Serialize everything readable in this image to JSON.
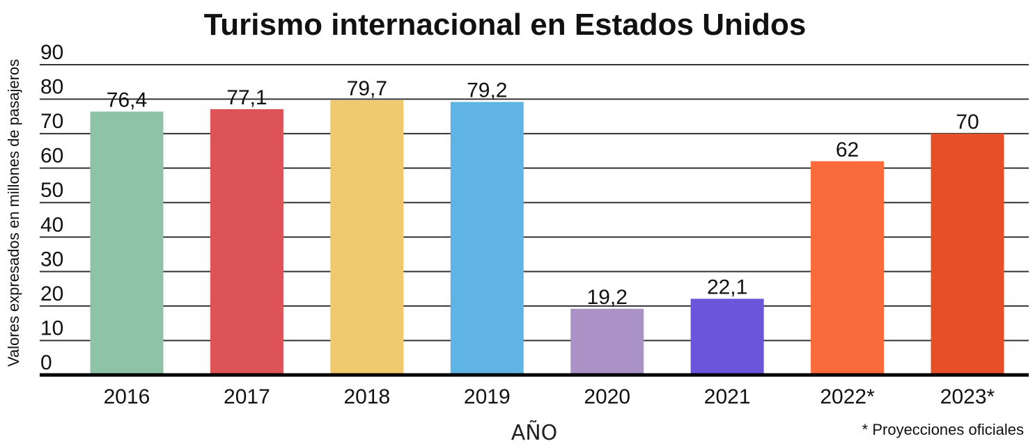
{
  "chart_data": {
    "type": "bar",
    "title": "Turismo internacional en Estados Unidos",
    "xlabel": "AÑO",
    "ylabel": "Valores expresados en millones de pasajeros",
    "categories": [
      "2016",
      "2017",
      "2018",
      "2019",
      "2020",
      "2021",
      "2022*",
      "2023*"
    ],
    "values": [
      76.4,
      77.1,
      79.7,
      79.2,
      19.2,
      22.1,
      62,
      70
    ],
    "value_labels": [
      "76,4",
      "77,1",
      "79,7",
      "79,2",
      "19,2",
      "22,1",
      "62",
      "70"
    ],
    "colors": [
      "#8fc3a7",
      "#dd5358",
      "#efc96b",
      "#60b4e4",
      "#aa91c6",
      "#6b55da",
      "#fb6a3a",
      "#e64f27"
    ],
    "ylim": [
      0,
      90
    ],
    "yticks": [
      0,
      10,
      20,
      30,
      40,
      50,
      60,
      70,
      80,
      90
    ],
    "grid": true,
    "legend": "none",
    "note": "* Proyecciones oficiales"
  }
}
